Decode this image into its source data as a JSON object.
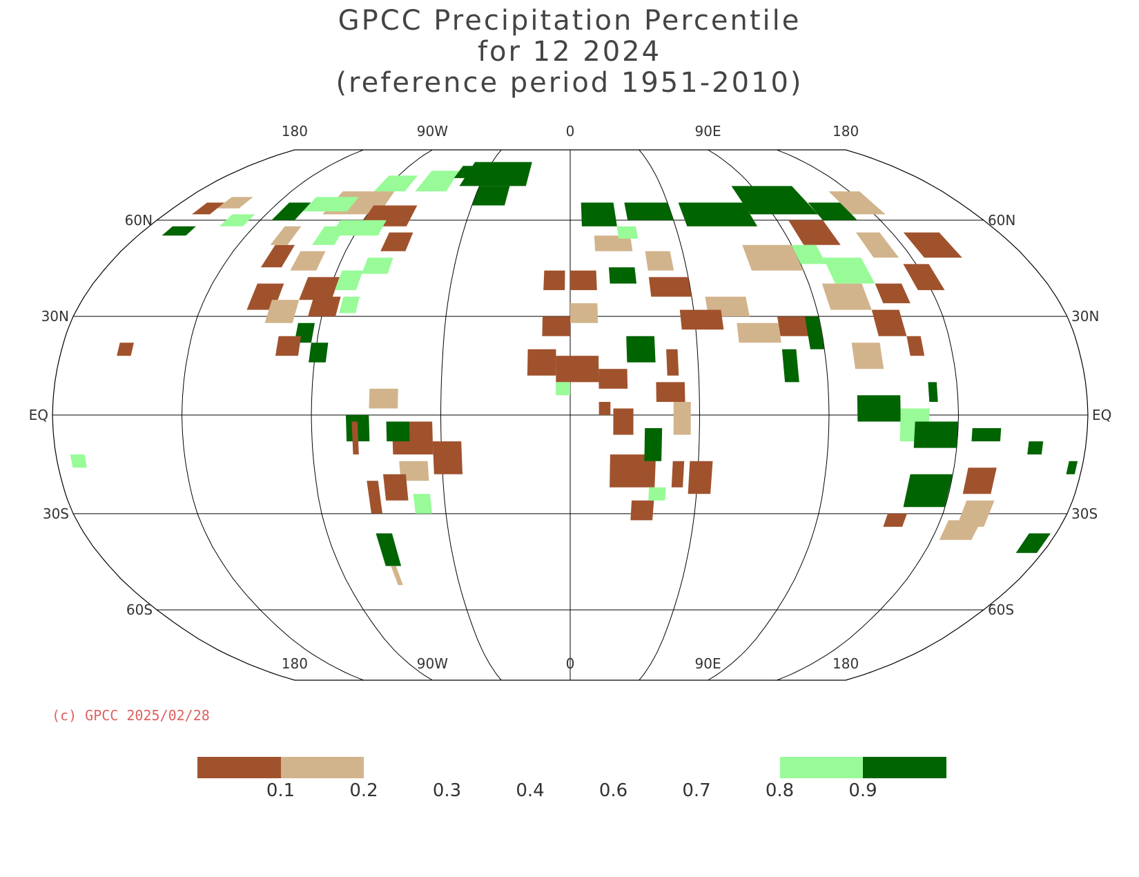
{
  "title": {
    "line1": "GPCC Precipitation Percentile",
    "line2": "for 12 2024",
    "line3": "(reference period 1951-2010)"
  },
  "map": {
    "projection": "Robinson",
    "central_meridian": 0,
    "graticule_spacing_deg": {
      "lat": 30,
      "lon": 90
    },
    "lon_labels": [
      "180",
      "90W",
      "0",
      "90E",
      "180"
    ],
    "lat_labels": [
      "60N",
      "30N",
      "EQ",
      "30S",
      "60S"
    ]
  },
  "legend": {
    "classes": [
      {
        "label": "< 0.1",
        "color": "#a0522d"
      },
      {
        "label": "0.1 - 0.2",
        "color": "#d2b48c"
      },
      {
        "label": "0.8 - 0.9",
        "color": "#98fb98"
      },
      {
        "label": "> 0.9",
        "color": "#006400"
      }
    ],
    "tick_labels": [
      "0.1",
      "0.2",
      "0.3",
      "0.4",
      "0.6",
      "0.7",
      "0.8",
      "0.9"
    ]
  },
  "copyright": "(c) GPCC 2025/02/28",
  "colors": {
    "title": "#444444",
    "copyright": "#e06060",
    "grid": "#000000"
  }
}
